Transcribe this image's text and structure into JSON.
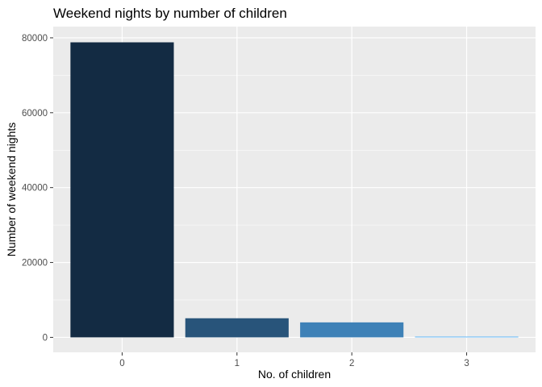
{
  "chart_data": {
    "type": "bar",
    "title": "Weekend nights by number of children",
    "xlabel": "No. of children",
    "ylabel": "Number of weekend nights",
    "categories": [
      "0",
      "1",
      "2",
      "3"
    ],
    "values": [
      78800,
      5100,
      4000,
      200
    ],
    "ylim": [
      -4000,
      83000
    ],
    "yticks": [
      0,
      20000,
      40000,
      60000,
      80000
    ],
    "ytick_labels": [
      "0",
      "20000",
      "40000",
      "60000",
      "80000"
    ],
    "grid": true,
    "legend": "none",
    "colors": [
      "#132B43",
      "#28547A",
      "#3E81B7",
      "#56B1F7"
    ],
    "panel_background": "#EBEBEB",
    "gridline_color": "#FFFFFF"
  }
}
